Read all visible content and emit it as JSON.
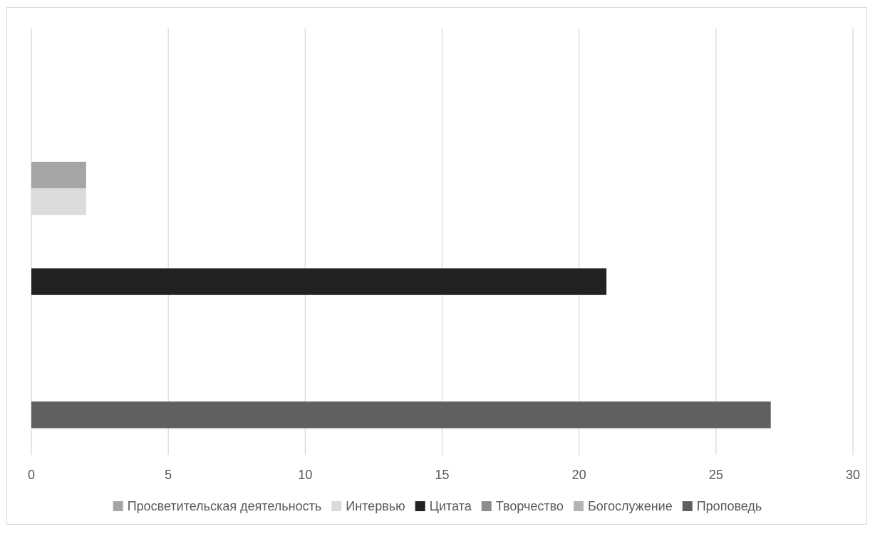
{
  "chart_data": {
    "type": "bar",
    "orientation": "horizontal",
    "stacked": true,
    "title": "",
    "xlabel": "",
    "ylabel": "",
    "xlim": [
      0,
      30
    ],
    "x_ticks": [
      0,
      5,
      10,
      15,
      20,
      25,
      30
    ],
    "grid": "vertical",
    "legend_position": "bottom",
    "category_count": 4,
    "series": [
      {
        "name": "Просветительская деятельность",
        "color": "#a5a5a5",
        "values": [
          0,
          2,
          0,
          0
        ]
      },
      {
        "name": "Интервью",
        "color": "#dbdbdb",
        "values": [
          0,
          2,
          0,
          0
        ]
      },
      {
        "name": "Цитата",
        "color": "#222222",
        "values": [
          0,
          0,
          21,
          0
        ]
      },
      {
        "name": "Творчество",
        "color": "#8c8c8c",
        "values": [
          0,
          0,
          0,
          0
        ]
      },
      {
        "name": "Богослужение",
        "color": "#b4b4b4",
        "values": [
          0,
          0,
          0,
          0
        ]
      },
      {
        "name": "Проповедь",
        "color": "#606060",
        "values": [
          0,
          0,
          0,
          27
        ]
      }
    ]
  }
}
